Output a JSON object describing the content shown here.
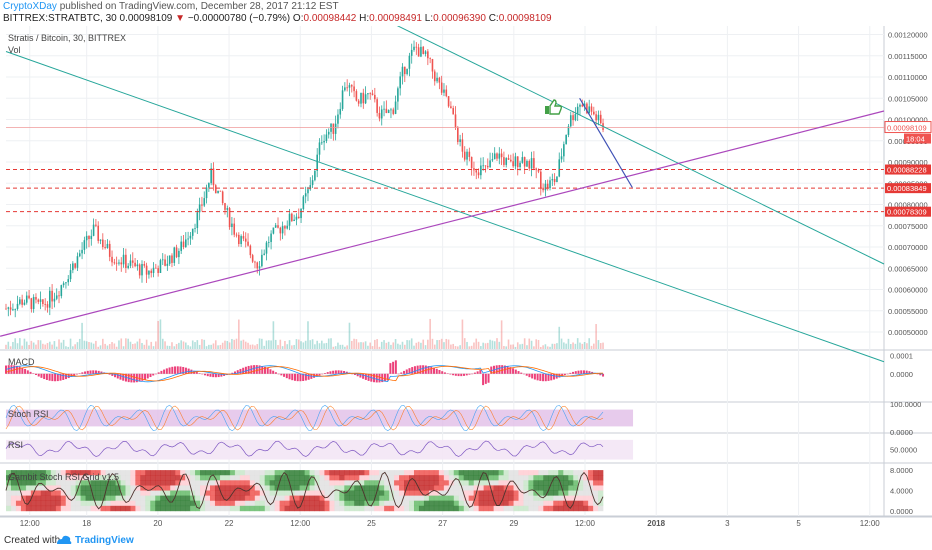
{
  "header": {
    "author": "CryptoXDay",
    "published_text": "published on TradingView.com, December 28, 2017 21:12 EST",
    "symbol": "BITTREX:STRATBTC, 30",
    "last": "0.00098109",
    "arrow": "▼",
    "change": "−0.00000780 (−0.79%)",
    "o_label": "O:",
    "o_value": "0.00098442",
    "h_label": "H:",
    "h_value": "0.00098491",
    "l_label": "L:",
    "l_value": "0.00096390",
    "c_label": "C:",
    "c_value": "0.00098109"
  },
  "footer": {
    "created_with": "Created with",
    "brand": "TradingView"
  },
  "colors": {
    "up": "#26a69a",
    "down": "#ef5350",
    "channel": "#26a69a",
    "trend": "#ab47bc",
    "projection": "#3f51b5",
    "hline": "#e53935",
    "rsi_band": "#e1bee7",
    "grid": "#eef0f3"
  },
  "icons": {
    "thumbs_up": "thumbs-up-icon"
  },
  "chart_data": [
    {
      "type": "candlestick",
      "title": "Stratis / Bitcoin, 30, BITTREX",
      "subtitle": "Vol",
      "x_ticks": [
        "12:00",
        "18",
        "20",
        "22",
        "12:00",
        "25",
        "27",
        "29",
        "12:00",
        "2018",
        "3",
        "5",
        "12:00"
      ],
      "y_ticks": [
        "0.00120000",
        "0.00115000",
        "0.00110000",
        "0.00105000",
        "0.00100000",
        "0.00095000",
        "0.00090000",
        "0.00085000",
        "0.00080000",
        "0.00075000",
        "0.00070000",
        "0.00065000",
        "0.00060000",
        "0.00055000",
        "0.00050000"
      ],
      "ylim": [
        0.00046,
        0.00122
      ],
      "grid": true,
      "price_path": [
        [
          0,
          0.000555
        ],
        [
          6,
          0.000575
        ],
        [
          12,
          0.00056
        ],
        [
          18,
          0.0006
        ],
        [
          24,
          0.00067
        ],
        [
          30,
          0.00074
        ],
        [
          36,
          0.00068
        ],
        [
          42,
          0.00066
        ],
        [
          48,
          0.00064
        ],
        [
          54,
          0.00066
        ],
        [
          60,
          0.0007
        ],
        [
          66,
          0.00078
        ],
        [
          70,
          0.00087
        ],
        [
          74,
          0.0008
        ],
        [
          78,
          0.00074
        ],
        [
          82,
          0.0007
        ],
        [
          86,
          0.00066
        ],
        [
          90,
          0.00072
        ],
        [
          96,
          0.00076
        ],
        [
          100,
          0.00078
        ],
        [
          104,
          0.00084
        ],
        [
          108,
          0.00096
        ],
        [
          112,
          0.00098
        ],
        [
          116,
          0.00109
        ],
        [
          120,
          0.00104
        ],
        [
          124,
          0.00106
        ],
        [
          128,
          0.00101
        ],
        [
          132,
          0.00102
        ],
        [
          136,
          0.00112
        ],
        [
          140,
          0.00117
        ],
        [
          144,
          0.00114
        ],
        [
          148,
          0.00108
        ],
        [
          152,
          0.00102
        ],
        [
          156,
          0.00092
        ],
        [
          160,
          0.00089
        ],
        [
          164,
          0.00088
        ],
        [
          168,
          0.00092
        ],
        [
          172,
          0.00089
        ],
        [
          176,
          0.00091
        ],
        [
          180,
          0.00089
        ],
        [
          184,
          0.00084
        ],
        [
          188,
          0.00086
        ],
        [
          192,
          0.00099
        ],
        [
          196,
          0.00104
        ],
        [
          200,
          0.00102
        ],
        [
          204,
          0.00098
        ]
      ],
      "series": [
        {
          "name": "last",
          "value": "0.00098109",
          "color": "#ef5350"
        },
        {
          "name": "countdown",
          "value": "18:04",
          "color": "#ef5350"
        }
      ],
      "horizontal_levels": [
        {
          "value": 0.00088228,
          "label": "0.00088228"
        },
        {
          "value": 0.00083849,
          "label": "0.00083849"
        },
        {
          "value": 0.00078309,
          "label": "0.00078309"
        }
      ],
      "channel_lines": [
        {
          "from": [
            0,
            0.00116
          ],
          "to": [
            300,
            0.00043
          ]
        },
        {
          "from": [
            128,
            0.00124
          ],
          "to": [
            300,
            0.00066
          ]
        }
      ],
      "trend_line": {
        "from": [
          -2,
          0.00049
        ],
        "to": [
          300,
          0.00102
        ]
      },
      "projection": {
        "from": [
          196,
          0.00105
        ],
        "to": [
          214,
          0.00084
        ]
      }
    },
    {
      "type": "line",
      "title": "MACD",
      "y_ticks": [
        "0.0001",
        "0.0000"
      ],
      "ylim": [
        -0.00015,
        0.00012
      ],
      "series": [
        {
          "name": "macd",
          "color": "#2196f3"
        },
        {
          "name": "signal",
          "color": "#ff6d00"
        },
        {
          "name": "histogram",
          "color": "#e91e63"
        }
      ]
    },
    {
      "type": "line",
      "title": "Stoch RSI",
      "y_ticks": [
        "100.0000",
        "0.0000"
      ],
      "ylim": [
        0,
        100
      ],
      "series": [
        {
          "name": "%K",
          "color": "#2196f3"
        },
        {
          "name": "%D",
          "color": "#ff6d00"
        }
      ]
    },
    {
      "type": "line",
      "title": "RSI",
      "y_ticks": [
        "50.0000"
      ],
      "ylim": [
        25,
        80
      ],
      "series": [
        {
          "name": "rsi",
          "color": "#7e57c2"
        }
      ]
    },
    {
      "type": "heatmap",
      "title": "Gambit Stoch RSI Grid v1.5",
      "y_ticks": [
        "8.0000",
        "4.0000",
        "0.0000"
      ],
      "ylim": [
        -1,
        9
      ]
    }
  ]
}
